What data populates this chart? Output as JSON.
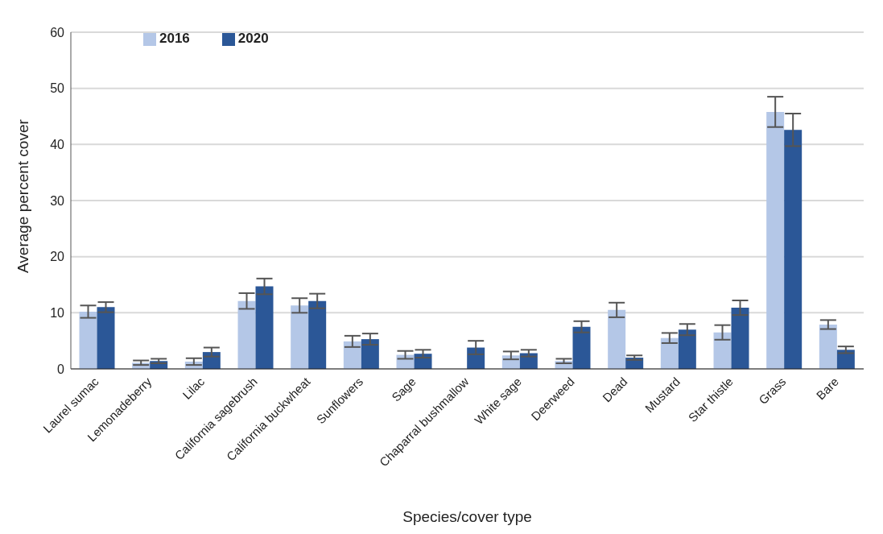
{
  "chart_data": {
    "type": "bar",
    "xlabel": "Species/cover type",
    "ylabel": "Average percent cover",
    "categories": [
      "Laurel sumac",
      "Lemonadeberry",
      "Lilac",
      "California sagebrush",
      "California buckwheat",
      "Sunflowers",
      "Sage",
      "Chaparral bushmallow",
      "White sage",
      "Deerweed",
      "Dead",
      "Mustard",
      "Star thistle",
      "Grass",
      "Bare"
    ],
    "series": [
      {
        "name": "2016",
        "color": "#b4c7e7",
        "values": [
          10.2,
          1.1,
          1.3,
          12.1,
          11.3,
          4.9,
          2.5,
          0,
          2.4,
          1.4,
          10.5,
          5.5,
          6.5,
          45.8,
          7.9
        ],
        "errors": [
          1.1,
          0.4,
          0.6,
          1.4,
          1.3,
          1.0,
          0.7,
          null,
          0.7,
          0.4,
          1.3,
          0.9,
          1.3,
          2.7,
          0.8
        ]
      },
      {
        "name": "2020",
        "color": "#2b5797",
        "values": [
          11.0,
          1.4,
          3.0,
          14.7,
          12.1,
          5.3,
          2.7,
          3.8,
          2.8,
          7.5,
          2.0,
          7.0,
          10.9,
          42.6,
          3.4
        ],
        "errors": [
          0.9,
          0.4,
          0.8,
          1.4,
          1.3,
          1.0,
          0.7,
          1.2,
          0.6,
          1.0,
          0.4,
          1.0,
          1.3,
          2.9,
          0.6
        ]
      }
    ],
    "ylim": [
      0,
      60
    ],
    "yticks": [
      0,
      10,
      20,
      30,
      40,
      50,
      60
    ],
    "grid": "y",
    "legend": "top left"
  }
}
